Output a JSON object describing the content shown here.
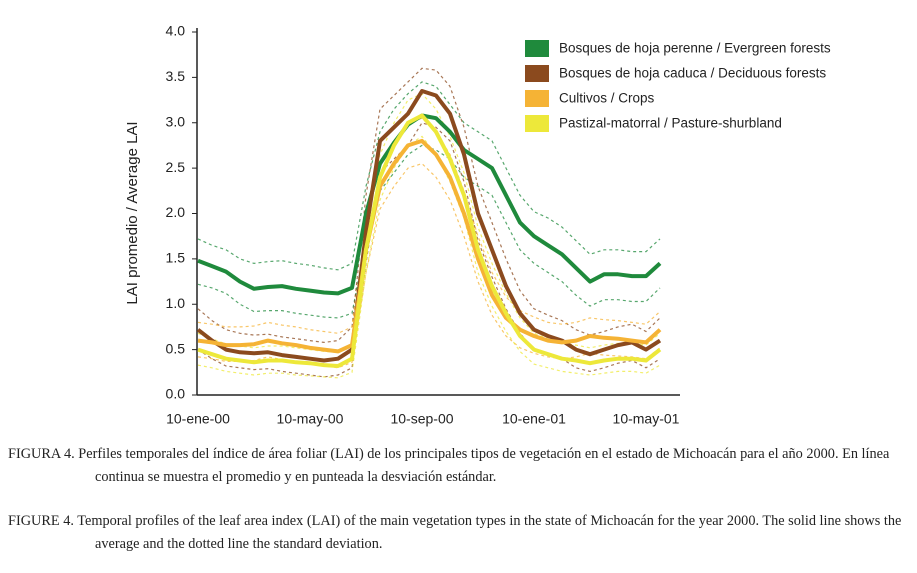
{
  "chart_data": {
    "type": "line",
    "y_label": "LAI promedio / Average LAI",
    "categories": [
      "10-ene-00",
      null,
      null,
      null,
      null,
      null,
      null,
      null,
      "10-may-00",
      null,
      null,
      null,
      null,
      null,
      null,
      null,
      "10-sep-00",
      null,
      null,
      null,
      null,
      null,
      null,
      null,
      "10-ene-01",
      null,
      null,
      null,
      null,
      null,
      null,
      null,
      "10-may-01",
      null
    ],
    "ylim": [
      0,
      4
    ],
    "yticks": [
      {
        "value": 0,
        "label": "0.0"
      },
      0.5,
      {
        "value": 1,
        "label": "1.0"
      },
      1.5,
      {
        "value": 2,
        "label": "2.0"
      },
      2.5,
      {
        "value": 3,
        "label": "3.0"
      },
      3.5,
      {
        "value": 4,
        "label": "4.0"
      }
    ],
    "grid": false,
    "legend": "upper right",
    "series": [
      {
        "name": "Bosques de hoja perenne / Evergreen forests",
        "color": "#1f8a3c",
        "values": [
          1.48,
          1.42,
          1.36,
          1.25,
          1.17,
          1.19,
          1.2,
          1.17,
          1.15,
          1.13,
          1.12,
          1.18,
          2.0,
          2.55,
          2.78,
          2.98,
          3.08,
          3.05,
          2.9,
          2.7,
          2.6,
          2.5,
          2.2,
          1.9,
          1.75,
          1.65,
          1.55,
          1.4,
          1.25,
          1.33,
          1.33,
          1.31,
          1.31,
          1.45
        ],
        "upper": [
          1.72,
          1.65,
          1.6,
          1.5,
          1.45,
          1.47,
          1.48,
          1.45,
          1.43,
          1.4,
          1.38,
          1.45,
          2.3,
          2.9,
          3.15,
          3.32,
          3.45,
          3.4,
          3.2,
          3.0,
          2.9,
          2.8,
          2.5,
          2.2,
          2.02,
          1.95,
          1.85,
          1.7,
          1.55,
          1.6,
          1.6,
          1.58,
          1.58,
          1.72
        ],
        "lower": [
          1.22,
          1.18,
          1.12,
          1.0,
          0.92,
          0.93,
          0.93,
          0.9,
          0.88,
          0.86,
          0.85,
          0.9,
          1.7,
          2.25,
          2.45,
          2.65,
          2.75,
          2.7,
          2.6,
          2.4,
          2.3,
          2.2,
          1.9,
          1.6,
          1.45,
          1.35,
          1.25,
          1.1,
          0.98,
          1.05,
          1.05,
          1.03,
          1.03,
          1.18
        ]
      },
      {
        "name": "Bosques de hoja caduca / Deciduous forests",
        "color": "#8b4a1e",
        "values": [
          0.72,
          0.6,
          0.5,
          0.47,
          0.46,
          0.47,
          0.44,
          0.42,
          0.4,
          0.38,
          0.4,
          0.5,
          1.8,
          2.8,
          2.95,
          3.1,
          3.35,
          3.3,
          3.1,
          2.65,
          2.0,
          1.6,
          1.2,
          0.9,
          0.72,
          0.65,
          0.6,
          0.5,
          0.45,
          0.5,
          0.55,
          0.58,
          0.5,
          0.6
        ],
        "upper": [
          0.95,
          0.82,
          0.72,
          0.68,
          0.66,
          0.67,
          0.64,
          0.62,
          0.6,
          0.58,
          0.6,
          0.75,
          2.2,
          3.15,
          3.3,
          3.45,
          3.6,
          3.58,
          3.4,
          2.95,
          2.3,
          1.9,
          1.5,
          1.15,
          0.95,
          0.88,
          0.82,
          0.72,
          0.66,
          0.7,
          0.75,
          0.78,
          0.7,
          0.85
        ],
        "lower": [
          0.5,
          0.4,
          0.32,
          0.3,
          0.28,
          0.29,
          0.26,
          0.24,
          0.22,
          0.2,
          0.22,
          0.3,
          1.45,
          2.45,
          2.6,
          2.75,
          3.0,
          2.95,
          2.8,
          2.35,
          1.7,
          1.3,
          0.95,
          0.68,
          0.5,
          0.44,
          0.4,
          0.3,
          0.26,
          0.3,
          0.35,
          0.38,
          0.3,
          0.4
        ]
      },
      {
        "name": "Cultivos / Crops",
        "color": "#f5b335",
        "values": [
          0.6,
          0.58,
          0.55,
          0.55,
          0.56,
          0.6,
          0.57,
          0.55,
          0.52,
          0.5,
          0.48,
          0.55,
          1.6,
          2.3,
          2.55,
          2.75,
          2.8,
          2.65,
          2.4,
          2.0,
          1.5,
          1.1,
          0.85,
          0.72,
          0.65,
          0.6,
          0.58,
          0.6,
          0.65,
          0.63,
          0.62,
          0.6,
          0.58,
          0.72
        ],
        "upper": [
          0.8,
          0.78,
          0.75,
          0.75,
          0.76,
          0.8,
          0.77,
          0.75,
          0.72,
          0.7,
          0.68,
          0.75,
          1.85,
          2.55,
          2.8,
          3.0,
          3.05,
          2.9,
          2.65,
          2.25,
          1.75,
          1.35,
          1.08,
          0.93,
          0.86,
          0.8,
          0.78,
          0.8,
          0.85,
          0.83,
          0.82,
          0.8,
          0.78,
          0.92
        ],
        "lower": [
          0.42,
          0.4,
          0.37,
          0.37,
          0.38,
          0.42,
          0.39,
          0.37,
          0.34,
          0.32,
          0.3,
          0.36,
          1.35,
          2.05,
          2.3,
          2.5,
          2.55,
          2.4,
          2.15,
          1.75,
          1.25,
          0.88,
          0.65,
          0.52,
          0.46,
          0.42,
          0.4,
          0.42,
          0.46,
          0.44,
          0.43,
          0.42,
          0.4,
          0.52
        ]
      },
      {
        "name": "Pastizal-matorral / Pasture-shurbland",
        "color": "#ede83a",
        "values": [
          0.5,
          0.45,
          0.4,
          0.38,
          0.36,
          0.38,
          0.38,
          0.36,
          0.35,
          0.33,
          0.32,
          0.4,
          1.6,
          2.4,
          2.75,
          3.0,
          3.08,
          2.9,
          2.6,
          2.2,
          1.6,
          1.2,
          0.9,
          0.65,
          0.5,
          0.45,
          0.4,
          0.38,
          0.35,
          0.38,
          0.4,
          0.4,
          0.38,
          0.5
        ],
        "upper": [
          0.68,
          0.62,
          0.56,
          0.54,
          0.52,
          0.54,
          0.54,
          0.52,
          0.5,
          0.48,
          0.47,
          0.56,
          1.85,
          2.65,
          3.0,
          3.25,
          3.32,
          3.15,
          2.85,
          2.45,
          1.85,
          1.45,
          1.12,
          0.85,
          0.68,
          0.62,
          0.57,
          0.55,
          0.52,
          0.55,
          0.57,
          0.57,
          0.55,
          0.68
        ],
        "lower": [
          0.33,
          0.3,
          0.26,
          0.24,
          0.22,
          0.24,
          0.24,
          0.22,
          0.21,
          0.2,
          0.19,
          0.25,
          1.35,
          2.15,
          2.5,
          2.75,
          2.85,
          2.65,
          2.35,
          1.95,
          1.35,
          0.98,
          0.7,
          0.48,
          0.34,
          0.3,
          0.26,
          0.24,
          0.22,
          0.24,
          0.26,
          0.26,
          0.24,
          0.33
        ]
      }
    ],
    "captions": [
      "FIGURA 4. Perfiles temporales del índice de área foliar (LAI) de los principales tipos de vegetación en el estado de Michoacán para el año 2000. En línea continua se muestra el promedio y en punteada la desviación estándar.",
      "FIGURE 4. Temporal profiles of the leaf area index (LAI) of the main vegetation types in the state of Michoacán for the year 2000. The solid line shows the average and the dotted line the standard deviation."
    ]
  }
}
